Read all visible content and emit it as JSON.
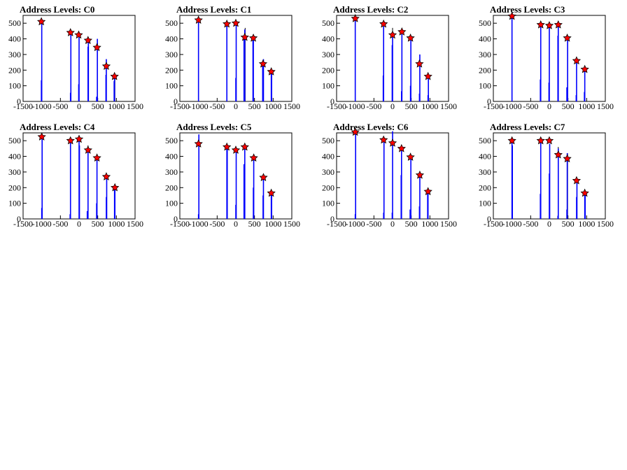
{
  "colors": {
    "bar": "#0000ff",
    "error_bar": "#000000",
    "marker_fill": "#ff0000",
    "marker_stroke": "#000000",
    "axis": "#000000",
    "background": "#ffffff"
  },
  "chart_data": [
    {
      "type": "bar",
      "title": "Address Levels: C0",
      "xlabel": "",
      "ylabel": "",
      "xlim": [
        -1500,
        1500
      ],
      "ylim": [
        0,
        550
      ],
      "xticks": [
        "-1500",
        "-1000",
        "-500",
        "0",
        "500",
        "1000",
        "1500"
      ],
      "yticks": [
        "0",
        "100",
        "200",
        "300",
        "400",
        "500"
      ],
      "bars": [
        [
          -1010,
          135
        ],
        [
          -1000,
          500
        ],
        [
          -230,
          55
        ],
        [
          -220,
          430
        ],
        [
          -10,
          110
        ],
        [
          0,
          410
        ],
        [
          240,
          350
        ],
        [
          250,
          390
        ],
        [
          470,
          30
        ],
        [
          490,
          400
        ],
        [
          720,
          170
        ],
        [
          730,
          270
        ],
        [
          940,
          130
        ],
        [
          950,
          170
        ]
      ],
      "peaks": [
        [
          -1010,
          510
        ],
        [
          -230,
          440
        ],
        [
          -10,
          425
        ],
        [
          240,
          390
        ],
        [
          480,
          345
        ],
        [
          730,
          225
        ],
        [
          950,
          160
        ]
      ],
      "errors": [
        [
          490,
          400
        ],
        [
          730,
          270
        ],
        [
          960,
          170
        ]
      ]
    },
    {
      "type": "bar",
      "title": "Address Levels: C1",
      "xlabel": "",
      "ylabel": "",
      "xlim": [
        -1500,
        1500
      ],
      "ylim": [
        0,
        550
      ],
      "xticks": [
        "-1500",
        "-1000",
        "-500",
        "0",
        "500",
        "1000",
        "1500"
      ],
      "yticks": [
        "0",
        "100",
        "200",
        "300",
        "400",
        "500"
      ],
      "bars": [
        [
          -1000,
          520
        ],
        [
          -240,
          485
        ],
        [
          0,
          150
        ],
        [
          10,
          500
        ],
        [
          220,
          420
        ],
        [
          240,
          460
        ],
        [
          460,
          390
        ],
        [
          470,
          420
        ],
        [
          720,
          240
        ],
        [
          740,
          270
        ],
        [
          950,
          180
        ],
        [
          960,
          190
        ]
      ],
      "peaks": [
        [
          -1000,
          520
        ],
        [
          -240,
          495
        ],
        [
          0,
          500
        ],
        [
          240,
          410
        ],
        [
          470,
          405
        ],
        [
          730,
          240
        ],
        [
          950,
          190
        ]
      ],
      "errors": [
        [
          250,
          470
        ],
        [
          740,
          270
        ]
      ]
    },
    {
      "type": "bar",
      "title": "Address Levels: C2",
      "xlabel": "",
      "ylabel": "",
      "xlim": [
        -1500,
        1500
      ],
      "ylim": [
        0,
        550
      ],
      "xticks": [
        "-1500",
        "-1000",
        "-500",
        "0",
        "500",
        "1000",
        "1500"
      ],
      "yticks": [
        "0",
        "100",
        "200",
        "300",
        "400",
        "500"
      ],
      "bars": [
        [
          -1000,
          530
        ],
        [
          -250,
          165
        ],
        [
          -240,
          480
        ],
        [
          -10,
          360
        ],
        [
          0,
          430
        ],
        [
          240,
          65
        ],
        [
          250,
          430
        ],
        [
          480,
          100
        ],
        [
          490,
          400
        ],
        [
          720,
          50
        ],
        [
          730,
          300
        ],
        [
          950,
          40
        ],
        [
          960,
          160
        ]
      ],
      "peaks": [
        [
          -1000,
          530
        ],
        [
          -240,
          495
        ],
        [
          0,
          425
        ],
        [
          250,
          445
        ],
        [
          480,
          405
        ],
        [
          720,
          240
        ],
        [
          950,
          160
        ]
      ],
      "errors": [
        [
          0,
          470
        ],
        [
          730,
          300
        ]
      ]
    },
    {
      "type": "bar",
      "title": "Address Levels: C3",
      "xlabel": "",
      "ylabel": "",
      "xlim": [
        -1500,
        1500
      ],
      "ylim": [
        0,
        550
      ],
      "xticks": [
        "-1500",
        "-1000",
        "-500",
        "0",
        "500",
        "1000",
        "1500"
      ],
      "yticks": [
        "0",
        "100",
        "200",
        "300",
        "400",
        "500"
      ],
      "bars": [
        [
          -1000,
          540
        ],
        [
          -240,
          140
        ],
        [
          -230,
          480
        ],
        [
          -10,
          120
        ],
        [
          0,
          480
        ],
        [
          230,
          420
        ],
        [
          240,
          480
        ],
        [
          470,
          90
        ],
        [
          490,
          420
        ],
        [
          720,
          40
        ],
        [
          730,
          270
        ],
        [
          940,
          60
        ],
        [
          950,
          210
        ]
      ],
      "peaks": [
        [
          -1000,
          545
        ],
        [
          -230,
          490
        ],
        [
          0,
          485
        ],
        [
          240,
          490
        ],
        [
          480,
          405
        ],
        [
          730,
          260
        ],
        [
          950,
          205
        ]
      ],
      "errors": [
        [
          490,
          420
        ]
      ]
    },
    {
      "type": "bar",
      "title": "Address Levels: C4",
      "xlabel": "",
      "ylabel": "",
      "xlim": [
        -1500,
        1500
      ],
      "ylim": [
        0,
        550
      ],
      "xticks": [
        "-1500",
        "-1000",
        "-500",
        "0",
        "500",
        "1000",
        "1500"
      ],
      "yticks": [
        "0",
        "100",
        "200",
        "300",
        "400",
        "500"
      ],
      "bars": [
        [
          -1000,
          70
        ],
        [
          -990,
          520
        ],
        [
          -240,
          30
        ],
        [
          -230,
          500
        ],
        [
          0,
          510
        ],
        [
          10,
          470
        ],
        [
          220,
          50
        ],
        [
          240,
          440
        ],
        [
          470,
          100
        ],
        [
          480,
          390
        ],
        [
          730,
          140
        ],
        [
          740,
          280
        ],
        [
          950,
          190
        ],
        [
          960,
          200
        ]
      ],
      "peaks": [
        [
          -1000,
          525
        ],
        [
          -230,
          500
        ],
        [
          0,
          510
        ],
        [
          240,
          440
        ],
        [
          480,
          390
        ],
        [
          730,
          270
        ],
        [
          960,
          200
        ]
      ],
      "errors": [
        [
          240,
          470
        ]
      ]
    },
    {
      "type": "bar",
      "title": "Address Levels: C5",
      "xlabel": "",
      "ylabel": "",
      "xlim": [
        -1500,
        1500
      ],
      "ylim": [
        0,
        550
      ],
      "xticks": [
        "-1500",
        "-1000",
        "-500",
        "0",
        "500",
        "1000",
        "1500"
      ],
      "yticks": [
        "0",
        "100",
        "200",
        "300",
        "400",
        "500"
      ],
      "bars": [
        [
          -1000,
          30
        ],
        [
          -990,
          540
        ],
        [
          -240,
          460
        ],
        [
          -230,
          470
        ],
        [
          0,
          90
        ],
        [
          10,
          450
        ],
        [
          220,
          350
        ],
        [
          240,
          470
        ],
        [
          470,
          200
        ],
        [
          480,
          390
        ],
        [
          730,
          150
        ],
        [
          740,
          260
        ],
        [
          950,
          160
        ],
        [
          960,
          170
        ]
      ],
      "peaks": [
        [
          -1000,
          480
        ],
        [
          -240,
          460
        ],
        [
          0,
          440
        ],
        [
          240,
          460
        ],
        [
          480,
          390
        ],
        [
          740,
          265
        ],
        [
          950,
          165
        ]
      ],
      "errors": [
        [
          -990,
          540
        ]
      ]
    },
    {
      "type": "bar",
      "title": "Address Levels: C6",
      "xlabel": "",
      "ylabel": "",
      "xlim": [
        -1500,
        1500
      ],
      "ylim": [
        0,
        550
      ],
      "xticks": [
        "-1500",
        "-1000",
        "-500",
        "0",
        "500",
        "1000",
        "1500"
      ],
      "yticks": [
        "0",
        "100",
        "200",
        "300",
        "400",
        "500"
      ],
      "bars": [
        [
          -1000,
          30
        ],
        [
          -990,
          560
        ],
        [
          -240,
          40
        ],
        [
          -230,
          500
        ],
        [
          -10,
          40
        ],
        [
          0,
          560
        ],
        [
          230,
          280
        ],
        [
          240,
          460
        ],
        [
          470,
          60
        ],
        [
          490,
          380
        ],
        [
          720,
          80
        ],
        [
          730,
          280
        ],
        [
          940,
          190
        ],
        [
          950,
          180
        ]
      ],
      "peaks": [
        [
          -1000,
          555
        ],
        [
          -240,
          505
        ],
        [
          0,
          485
        ],
        [
          240,
          450
        ],
        [
          480,
          395
        ],
        [
          730,
          280
        ],
        [
          950,
          175
        ]
      ],
      "errors": [
        [
          0,
          560
        ]
      ]
    },
    {
      "type": "bar",
      "title": "Address Levels: C7",
      "xlabel": "",
      "ylabel": "",
      "xlim": [
        -1500,
        1500
      ],
      "ylim": [
        0,
        550
      ],
      "xticks": [
        "-1500",
        "-1000",
        "-500",
        "0",
        "500",
        "1000",
        "1500"
      ],
      "yticks": [
        "0",
        "100",
        "200",
        "300",
        "400",
        "500"
      ],
      "bars": [
        [
          -1000,
          520
        ],
        [
          -990,
          470
        ],
        [
          -240,
          160
        ],
        [
          -230,
          490
        ],
        [
          0,
          290
        ],
        [
          10,
          480
        ],
        [
          230,
          20
        ],
        [
          240,
          450
        ],
        [
          470,
          60
        ],
        [
          480,
          420
        ],
        [
          730,
          140
        ],
        [
          740,
          250
        ],
        [
          950,
          160
        ],
        [
          960,
          180
        ]
      ],
      "peaks": [
        [
          -1000,
          500
        ],
        [
          -230,
          500
        ],
        [
          0,
          500
        ],
        [
          240,
          410
        ],
        [
          480,
          385
        ],
        [
          730,
          245
        ],
        [
          950,
          165
        ]
      ],
      "errors": [
        [
          240,
          460
        ],
        [
          490,
          420
        ]
      ]
    }
  ]
}
